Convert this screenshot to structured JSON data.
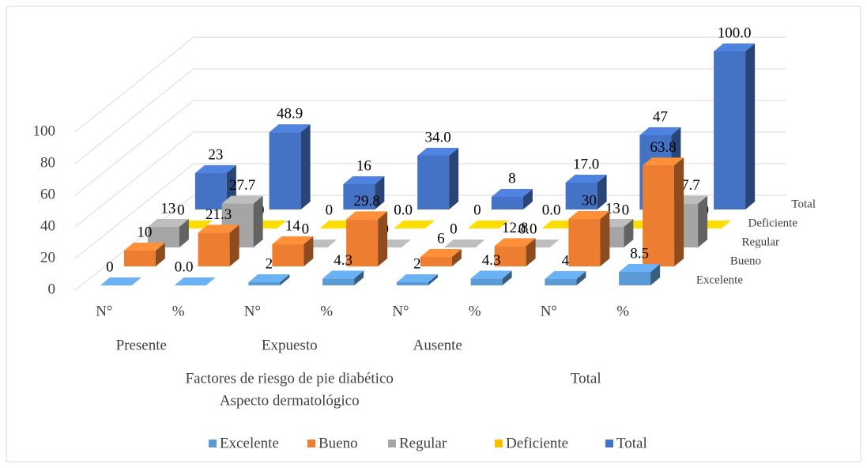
{
  "chart_data": {
    "type": "bar3d",
    "categories": [
      "N°",
      "%",
      "N°",
      "%",
      "N°",
      "%",
      "N°",
      "%"
    ],
    "groups": [
      "Presente",
      "Expuesto",
      "Ausente",
      null
    ],
    "super_groups": [
      [
        "Factores de riesgo de pie diabético",
        "Aspecto dermatológico"
      ],
      [
        "Total"
      ]
    ],
    "series": [
      {
        "name": "Excelente",
        "color": "#5b9bd5",
        "values": [
          0,
          0,
          2,
          4.3,
          2,
          4.3,
          4,
          8.5
        ],
        "value_labels": [
          "0",
          "0.0",
          "2",
          "4.3",
          "2",
          "4.3",
          "4",
          "8.5"
        ]
      },
      {
        "name": "Bueno",
        "color": "#ed7d31",
        "values": [
          10,
          21.3,
          14,
          29.8,
          6,
          12.8,
          30,
          63.8
        ],
        "value_labels": [
          "10",
          "21.3",
          "14",
          "29.8",
          "6",
          "12.8",
          "30",
          "63.8"
        ]
      },
      {
        "name": "Regular",
        "color": "#a5a5a5",
        "values": [
          13,
          27.7,
          0,
          0,
          0,
          0,
          13,
          27.7
        ],
        "value_labels": [
          "13",
          "27.7",
          "0",
          "0.0",
          "0",
          "0.0",
          "13",
          "27.7"
        ]
      },
      {
        "name": "Deficiente",
        "color": "#ffc000",
        "values": [
          0,
          0,
          0,
          0,
          0,
          0,
          0,
          0
        ],
        "value_labels": [
          "0",
          "0.0",
          "0",
          "0.0",
          "0",
          "0.0",
          "0",
          "0.0"
        ]
      },
      {
        "name": "Total",
        "color": "#4472c4",
        "values": [
          23,
          48.9,
          16,
          34,
          8,
          17,
          47,
          100
        ],
        "value_labels": [
          "23",
          "48.9",
          "16",
          "34.0",
          "8",
          "17.0",
          "47",
          "100.0"
        ]
      }
    ],
    "ylim": [
      0,
      100
    ],
    "yticks": [
      0,
      20,
      40,
      60,
      80,
      100
    ],
    "grid": true,
    "legend": "bottom"
  }
}
